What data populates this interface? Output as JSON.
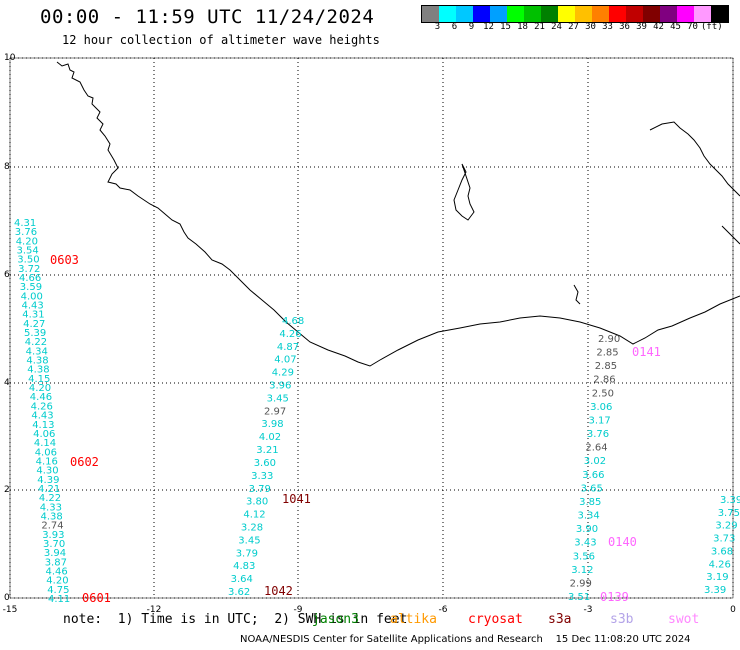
{
  "header": {
    "title": "00:00 - 11:59 UTC 11/24/2024",
    "subtitle": "12 hour collection of altimeter wave heights"
  },
  "color_scale": {
    "colors": [
      "#808080",
      "#00ffff",
      "#00c8ff",
      "#0000ff",
      "#00a0ff",
      "#00ff00",
      "#00c000",
      "#008000",
      "#ffff00",
      "#ffc000",
      "#ff8000",
      "#ff0000",
      "#c00000",
      "#800000",
      "#800080",
      "#ff00ff",
      "#ff99ff",
      "#000000"
    ],
    "labels": [
      "3",
      "6",
      "9",
      "12",
      "15",
      "18",
      "21",
      "24",
      "27",
      "30",
      "33",
      "36",
      "39",
      "42",
      "45",
      "70",
      "(ft)"
    ]
  },
  "axes": {
    "x_ticks": [
      "-15",
      "-12",
      "-9",
      "-6",
      "-3",
      "0"
    ],
    "y_ticks": [
      "0",
      "2",
      "4",
      "6",
      "8",
      "10"
    ]
  },
  "map": {
    "passes": [
      {
        "time": "0603",
        "color": "#ff0000"
      },
      {
        "time": "0602",
        "color": "#ff0000"
      },
      {
        "time": "0601",
        "color": "#ff0000"
      },
      {
        "time": "1041",
        "color": "#800000"
      },
      {
        "time": "1042",
        "color": "#800000"
      },
      {
        "time": "0141",
        "color": "#ff66ff"
      },
      {
        "time": "0140",
        "color": "#ff66ff"
      },
      {
        "time": "0139",
        "color": "#ff66ff"
      }
    ],
    "track_a": [
      "4.31",
      "3.76",
      "4.20",
      "3.54",
      "3.50",
      "3.72",
      "4.66",
      "3.59",
      "4.00",
      "4.43",
      "4.31",
      "4.27",
      "5.39",
      "4.22",
      "4.34",
      "4.38",
      "4.38",
      "4.15",
      "4.20",
      "4.46",
      "4.26",
      "4.43",
      "4.13",
      "4.06",
      "4.14",
      "4.06",
      "4.16",
      "4.30",
      "4.39",
      "4.21",
      "4.22",
      "4.33",
      "4.38",
      "2.74",
      "3.93",
      "3.70",
      "3.94",
      "3.87",
      "4.46",
      "4.20",
      "4.75",
      "4.11"
    ],
    "track_b": [
      "4.68",
      "4.26",
      "4.87",
      "4.07",
      "4.29",
      "3.96",
      "3.45",
      "2.97",
      "3.98",
      "4.02",
      "3.21",
      "3.60",
      "3.33",
      "3.79",
      "3.80",
      "4.12",
      "3.28",
      "3.45",
      "3.79",
      "4.83",
      "3.64",
      "3.62"
    ],
    "track_c": [
      "2.90",
      "2.85",
      "2.85",
      "2.86",
      "2.50",
      "3.06",
      "3.17",
      "3.76",
      "2.64",
      "3.02",
      "3.66",
      "3.65",
      "3.85",
      "3.34",
      "3.90",
      "3.43",
      "3.56",
      "3.12",
      "2.99",
      "3.51"
    ],
    "track_d": [
      "3.39",
      "3.75",
      "3.29",
      "3.73",
      "3.68",
      "4.26",
      "3.19",
      "3.39"
    ]
  },
  "footer": {
    "note": "note:  1) Time is in UTC;  2) SWH is in feet",
    "satellites": [
      {
        "name": "jason3",
        "color": "#008000"
      },
      {
        "name": "altika",
        "color": "#ff9900"
      },
      {
        "name": "cryosat",
        "color": "#ff0000"
      },
      {
        "name": "s3a",
        "color": "#800000"
      },
      {
        "name": "s3b",
        "color": "#b3a3e8"
      },
      {
        "name": "swot",
        "color": "#ff88ff"
      }
    ],
    "credit": "NOAA/NESDIS Center for Satellite Applications and Research    15 Dec 11:08:20 UTC 2024"
  }
}
